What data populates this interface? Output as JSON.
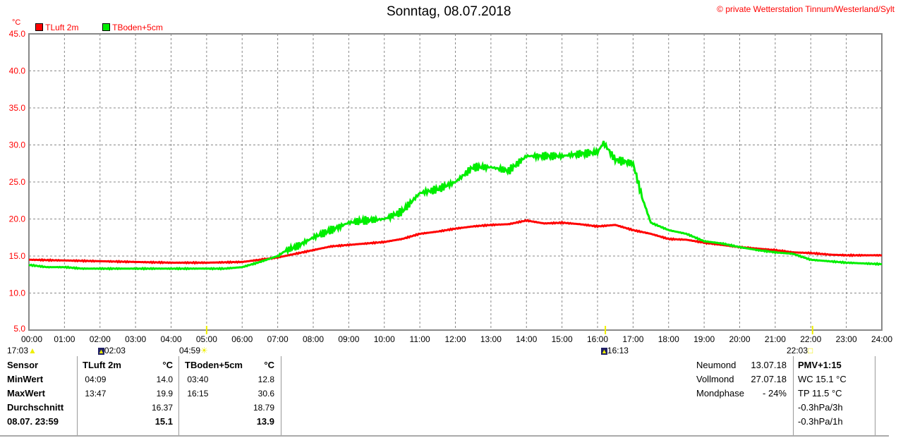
{
  "title": "Sonntag, 08.07.2018",
  "copyright": "© private Wetterstation Tinnum/Westerland/Sylt",
  "events": [
    {
      "time": "17:03",
      "icon": "moonset-icon"
    },
    {
      "time": "02:03",
      "icon": "moonrise-icon"
    },
    {
      "time": "04:59",
      "icon": "sunrise-icon"
    },
    {
      "time": "16:13",
      "icon": "moon-icon"
    },
    {
      "time": "22:03",
      "icon": "sunset-icon"
    }
  ],
  "chart_data": {
    "type": "line",
    "title": "Sonntag, 08.07.2018",
    "ylabel": "°C",
    "ylim": [
      5,
      45
    ],
    "yticks": [
      "5.0",
      "10.0",
      "15.0",
      "20.0",
      "25.0",
      "30.0",
      "35.0",
      "40.0",
      "45.0"
    ],
    "xticks": [
      "00:00",
      "01:00",
      "02:00",
      "03:00",
      "04:00",
      "05:00",
      "06:00",
      "07:00",
      "08:00",
      "09:00",
      "10:00",
      "11:00",
      "12:00",
      "13:00",
      "14:00",
      "15:00",
      "16:00",
      "17:00",
      "18:00",
      "19:00",
      "20:00",
      "21:00",
      "22:00",
      "23:00",
      "24:00"
    ],
    "xlim": [
      0,
      24
    ],
    "grid": true,
    "legend": "top-left",
    "series": [
      {
        "name": "TLuft 2m",
        "color": "#ff0000",
        "x": [
          0,
          1,
          2,
          3,
          4,
          5,
          6,
          6.5,
          7,
          7.5,
          8,
          8.5,
          9,
          9.5,
          10,
          10.5,
          11,
          11.5,
          12,
          12.5,
          13,
          13.5,
          14,
          14.5,
          15,
          15.5,
          16,
          16.5,
          17,
          17.5,
          18,
          18.5,
          19,
          19.5,
          20,
          20.5,
          21,
          21.5,
          22,
          22.5,
          23,
          24
        ],
        "y": [
          14.5,
          14.4,
          14.3,
          14.2,
          14.1,
          14.1,
          14.2,
          14.5,
          14.8,
          15.3,
          15.8,
          16.3,
          16.5,
          16.7,
          16.9,
          17.3,
          18.0,
          18.3,
          18.7,
          19.0,
          19.2,
          19.3,
          19.8,
          19.4,
          19.5,
          19.3,
          19.0,
          19.2,
          18.5,
          18.0,
          17.3,
          17.2,
          16.8,
          16.5,
          16.2,
          16.0,
          15.8,
          15.5,
          15.4,
          15.2,
          15.1,
          15.1
        ]
      },
      {
        "name": "TBoden+5cm",
        "color": "#00ee00",
        "x": [
          0,
          0.5,
          1,
          1.5,
          3,
          5.5,
          6,
          6.5,
          7,
          7.25,
          7.5,
          8,
          8.5,
          9,
          9.5,
          10,
          10.5,
          11,
          11.5,
          12,
          12.5,
          13,
          13.5,
          14,
          14.5,
          15,
          15.5,
          16,
          16.17,
          16.5,
          17,
          17.25,
          17.5,
          18,
          18.5,
          19,
          19.5,
          20,
          20.5,
          21,
          21.5,
          22,
          23,
          24
        ],
        "y": [
          13.8,
          13.5,
          13.5,
          13.3,
          13.3,
          13.3,
          13.5,
          14.2,
          15.0,
          15.8,
          16.2,
          17.5,
          18.5,
          19.5,
          19.8,
          20.0,
          21.0,
          23.5,
          24.0,
          25.0,
          27.0,
          27.0,
          26.5,
          28.5,
          28.5,
          28.5,
          28.8,
          29.0,
          30.3,
          28.0,
          27.5,
          23.0,
          19.5,
          18.5,
          18.0,
          17.0,
          16.7,
          16.2,
          15.8,
          15.5,
          15.3,
          14.5,
          14.1,
          13.9
        ]
      }
    ]
  },
  "stats": {
    "headers": {
      "sensor": "Sensor",
      "s1": "TLuft 2m",
      "u1": "°C",
      "s2": "TBoden+5cm",
      "u2": "°C"
    },
    "rows": [
      {
        "label": "MinWert",
        "t1": "04:09",
        "v1": "14.0",
        "t2": "03:40",
        "v2": "12.8"
      },
      {
        "label": "MaxWert",
        "t1": "13:47",
        "v1": "19.9",
        "t2": "16:15",
        "v2": "30.6"
      },
      {
        "label": "Durchschnitt",
        "t1": "",
        "v1": "16.37",
        "t2": "",
        "v2": "18.79"
      },
      {
        "label": "08.07. 23:59",
        "t1": "",
        "v1": "15.1",
        "t2": "",
        "v2": "13.9"
      }
    ]
  },
  "moon": [
    {
      "label": "Neumond",
      "value": "13.07.18"
    },
    {
      "label": "Vollmond",
      "value": "27.07.18"
    },
    {
      "label": "Mondphase",
      "value": "- 24%"
    }
  ],
  "extra": {
    "pmv": "PMV+1:15",
    "wc": "WC 15.1 °C",
    "tp": "TP 11.5 °C",
    "p3": "-0.3hPa/3h",
    "p1": "-0.3hPa/1h"
  }
}
